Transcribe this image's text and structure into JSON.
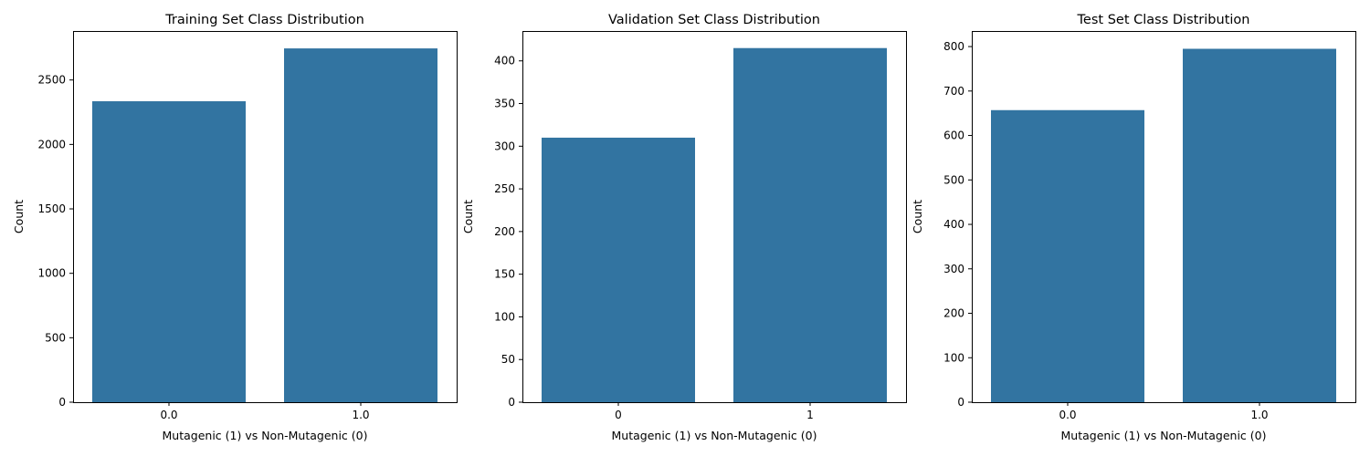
{
  "chart_data": [
    {
      "type": "bar",
      "title": "Training Set Class Distribution",
      "xlabel": "Mutagenic (1) vs Non-Mutagenic (0)",
      "ylabel": "Count",
      "categories": [
        "0.0",
        "1.0"
      ],
      "values": [
        2335,
        2745
      ],
      "ylim": [
        0,
        2880
      ],
      "yticks": [
        0,
        500,
        1000,
        1500,
        2000,
        2500
      ],
      "grid": false,
      "bar_color": "#3274a1"
    },
    {
      "type": "bar",
      "title": "Validation Set Class Distribution",
      "xlabel": "Mutagenic (1) vs Non-Mutagenic (0)",
      "ylabel": "Count",
      "categories": [
        "0",
        "1"
      ],
      "values": [
        310,
        415
      ],
      "ylim": [
        0,
        435
      ],
      "yticks": [
        0,
        50,
        100,
        150,
        200,
        250,
        300,
        350,
        400
      ],
      "grid": false,
      "bar_color": "#3274a1"
    },
    {
      "type": "bar",
      "title": "Test Set Class Distribution",
      "xlabel": "Mutagenic (1) vs Non-Mutagenic (0)",
      "ylabel": "Count",
      "categories": [
        "0.0",
        "1.0"
      ],
      "values": [
        657,
        795
      ],
      "ylim": [
        0,
        835
      ],
      "yticks": [
        0,
        100,
        200,
        300,
        400,
        500,
        600,
        700,
        800
      ],
      "grid": false,
      "bar_color": "#3274a1"
    }
  ]
}
